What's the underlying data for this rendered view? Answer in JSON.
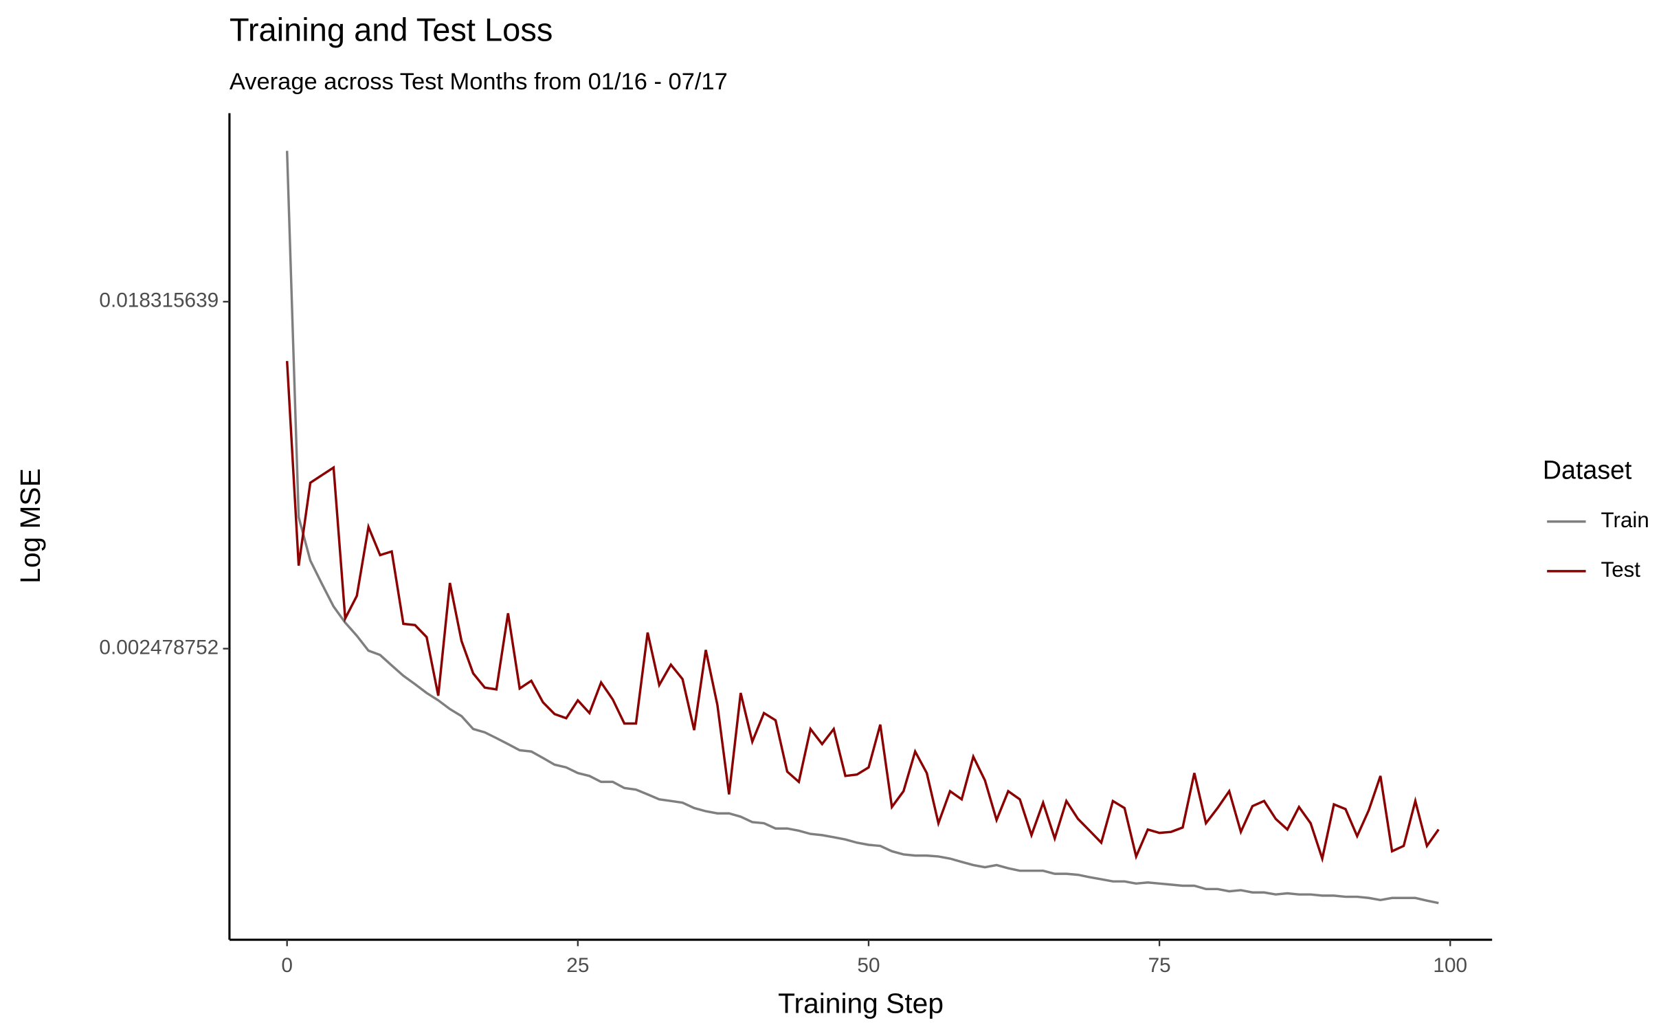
{
  "chart_data": {
    "type": "line",
    "title": "Training and Test Loss",
    "subtitle": "Average across Test Months from 01/16 - 07/17",
    "x_label": "Training Step",
    "y_label": "Log MSE",
    "legend_title": "Dataset",
    "legend_position": "right",
    "log_y": true,
    "grid": false,
    "x": [
      0,
      1,
      2,
      3,
      4,
      5,
      6,
      7,
      8,
      9,
      10,
      11,
      12,
      13,
      14,
      15,
      16,
      17,
      18,
      19,
      20,
      21,
      22,
      23,
      24,
      25,
      26,
      27,
      28,
      29,
      30,
      31,
      32,
      33,
      34,
      35,
      36,
      37,
      38,
      39,
      40,
      41,
      42,
      43,
      44,
      45,
      46,
      47,
      48,
      49,
      50,
      51,
      52,
      53,
      54,
      55,
      56,
      57,
      58,
      59,
      60,
      61,
      62,
      63,
      64,
      65,
      66,
      67,
      68,
      69,
      70,
      71,
      72,
      73,
      74,
      75,
      76,
      77,
      78,
      79,
      80,
      81,
      82,
      83,
      84,
      85,
      86,
      87,
      88,
      89,
      90,
      91,
      92,
      93,
      94,
      95,
      96,
      97,
      98,
      99
    ],
    "xlim": [
      -4.95,
      103.6
    ],
    "xticks": [
      0,
      25,
      50,
      75,
      100
    ],
    "ylim": [
      0.000463,
      0.0543
    ],
    "yticks": [
      0.002478752,
      0.018315639
    ],
    "series": [
      {
        "name": "Train",
        "color": "#7f7f7f",
        "values": [
          0.0437,
          0.00529,
          0.00412,
          0.0036,
          0.00316,
          0.00288,
          0.00267,
          0.00245,
          0.00239,
          0.00225,
          0.00212,
          0.00202,
          0.00192,
          0.00184,
          0.00175,
          0.00168,
          0.00156,
          0.00153,
          0.00148,
          0.00143,
          0.00138,
          0.00137,
          0.00132,
          0.00127,
          0.00125,
          0.00121,
          0.00119,
          0.00115,
          0.00115,
          0.00111,
          0.0011,
          0.00107,
          0.00104,
          0.00103,
          0.00102,
          0.000989,
          0.000971,
          0.000959,
          0.000959,
          0.000941,
          0.000912,
          0.000906,
          0.000879,
          0.000879,
          0.000868,
          0.000852,
          0.000846,
          0.000836,
          0.000825,
          0.00081,
          0.0008,
          0.000795,
          0.000771,
          0.000757,
          0.000752,
          0.000752,
          0.000748,
          0.000739,
          0.000725,
          0.000712,
          0.000703,
          0.000712,
          0.000699,
          0.000689,
          0.000689,
          0.000689,
          0.000677,
          0.000677,
          0.000673,
          0.000664,
          0.000656,
          0.000648,
          0.000648,
          0.00064,
          0.000644,
          0.00064,
          0.000636,
          0.000632,
          0.000632,
          0.00062,
          0.00062,
          0.000612,
          0.000616,
          0.000608,
          0.000608,
          0.000601,
          0.000605,
          0.000601,
          0.000601,
          0.000597,
          0.000597,
          0.000593,
          0.000593,
          0.000589,
          0.000582,
          0.000589,
          0.000589,
          0.000589,
          0.00058,
          0.000572
        ]
      },
      {
        "name": "Test",
        "color": "#8b0000",
        "values": [
          0.01301,
          0.004,
          0.00645,
          0.00674,
          0.00704,
          0.00295,
          0.00336,
          0.005,
          0.00425,
          0.00434,
          0.00286,
          0.00284,
          0.00265,
          0.00189,
          0.00362,
          0.00259,
          0.00215,
          0.00198,
          0.00196,
          0.00304,
          0.00197,
          0.00206,
          0.00182,
          0.0017,
          0.00166,
          0.00184,
          0.00171,
          0.00204,
          0.00185,
          0.00161,
          0.00161,
          0.00272,
          0.00201,
          0.00226,
          0.00208,
          0.00155,
          0.00246,
          0.00179,
          0.00107,
          0.00192,
          0.00145,
          0.00171,
          0.00164,
          0.00122,
          0.00115,
          0.00156,
          0.00143,
          0.00156,
          0.00119,
          0.0012,
          0.00125,
          0.0016,
          0.000995,
          0.00109,
          0.00137,
          0.00121,
          0.000906,
          0.00109,
          0.00104,
          0.00133,
          0.00116,
          0.000923,
          0.00109,
          0.00104,
          0.000846,
          0.00102,
          0.00083,
          0.00103,
          0.000929,
          0.000868,
          0.00081,
          0.00103,
          0.000989,
          0.000748,
          0.000874,
          0.000857,
          0.000862,
          0.000884,
          0.00121,
          0.000906,
          0.000989,
          0.00109,
          0.000862,
          0.001,
          0.00103,
          0.000929,
          0.000874,
          0.000995,
          0.000906,
          0.000739,
          0.00101,
          0.000983,
          0.000841,
          0.000977,
          0.00119,
          0.000771,
          0.000795,
          0.00103,
          0.000795,
          0.000874
        ]
      }
    ]
  }
}
